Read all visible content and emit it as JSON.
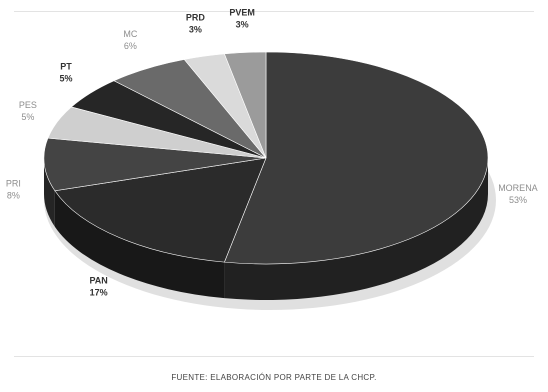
{
  "chart_data": {
    "type": "pie",
    "title": "",
    "series": [
      {
        "label": "MORENA",
        "percent": "53%",
        "value": 53,
        "color": "#3c3c3c"
      },
      {
        "label": "PAN",
        "percent": "17%",
        "value": 17,
        "color": "#2b2b2b"
      },
      {
        "label": "PRI",
        "percent": "8%",
        "value": 8,
        "color": "#444444"
      },
      {
        "label": "PES",
        "percent": "5%",
        "value": 5,
        "color": "#cfcfcf"
      },
      {
        "label": "PT",
        "percent": "5%",
        "value": 5,
        "color": "#262626"
      },
      {
        "label": "MC",
        "percent": "6%",
        "value": 6,
        "color": "#6a6a6a"
      },
      {
        "label": "PRD",
        "percent": "3%",
        "value": 3,
        "color": "#dadada"
      },
      {
        "label": "PVEM",
        "percent": "3%",
        "value": 3,
        "color": "#9b9b9b"
      }
    ],
    "legend": "none"
  },
  "source_note": "FUENTE: ELABORACIÓN POR PARTE DE LA CHCP."
}
